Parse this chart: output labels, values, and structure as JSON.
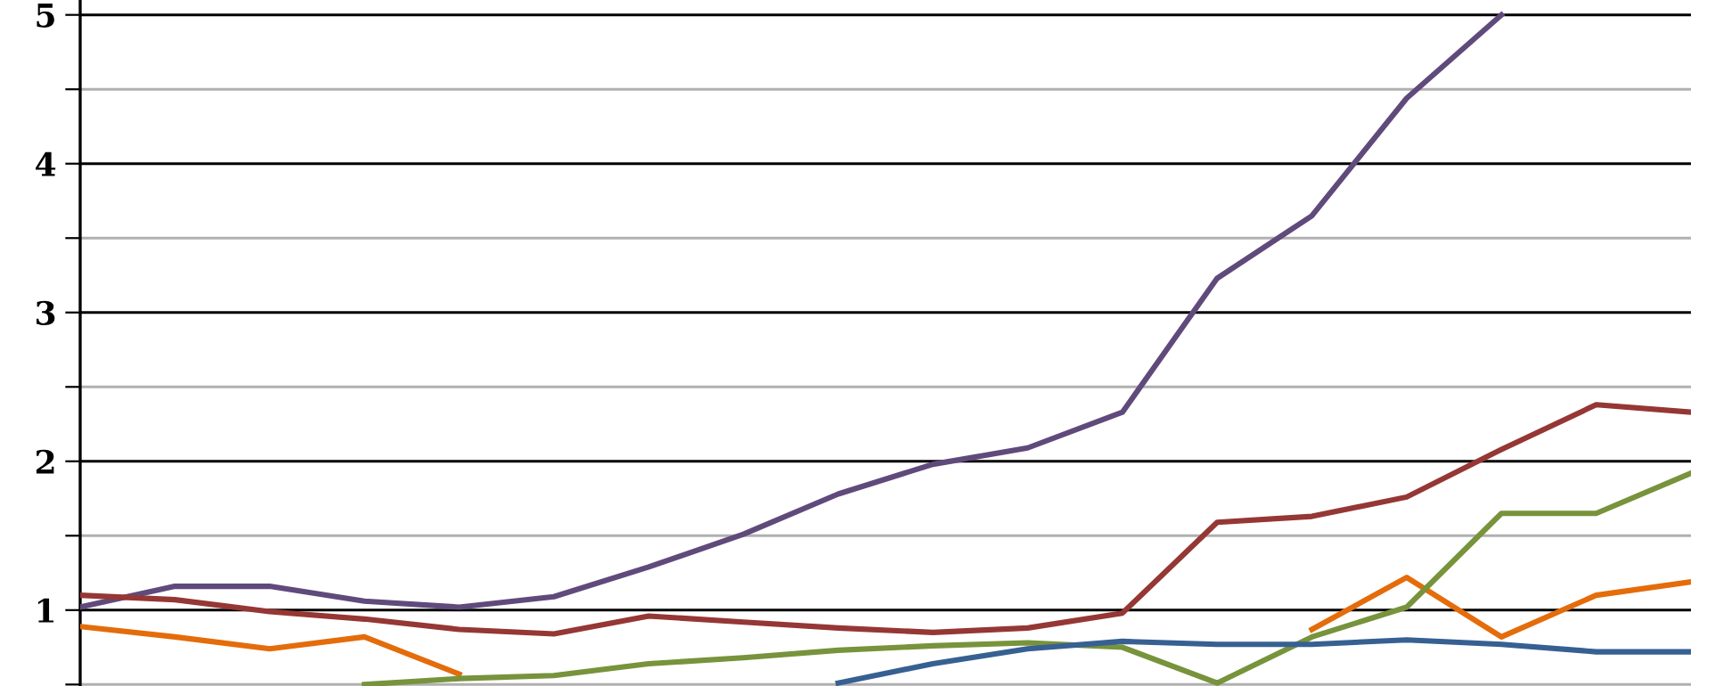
{
  "chart_data": {
    "type": "line",
    "categories": [
      null,
      null,
      null,
      null,
      null,
      null,
      null,
      null,
      null,
      null,
      null,
      null,
      null,
      null,
      null,
      null,
      null,
      null
    ],
    "series": [
      {
        "color": "#604a7b",
        "values": [
          1.02,
          1.16,
          1.16,
          1.06,
          1.02,
          1.09,
          1.29,
          1.51,
          1.78,
          1.98,
          2.09,
          2.33,
          3.23,
          3.65,
          4.44,
          5.0,
          null,
          null
        ]
      },
      {
        "color": "#953735",
        "values": [
          1.1,
          1.07,
          0.99,
          0.94,
          0.87,
          0.84,
          0.96,
          0.92,
          0.88,
          0.85,
          0.88,
          0.98,
          1.59,
          1.63,
          1.76,
          2.08,
          2.38,
          2.33
        ]
      },
      {
        "color": "#e46c0a",
        "values": [
          0.89,
          0.82,
          0.74,
          0.82,
          0.57,
          null,
          null,
          null,
          null,
          null,
          null,
          null,
          null,
          0.87,
          1.22,
          0.82,
          1.1,
          1.19
        ]
      },
      {
        "color": "#77933c",
        "values": [
          null,
          null,
          null,
          0.5,
          0.54,
          0.56,
          0.64,
          0.68,
          0.73,
          0.76,
          0.78,
          0.75,
          0.51,
          0.82,
          1.02,
          1.65,
          1.65,
          1.92
        ]
      },
      {
        "color": "#376092",
        "values": [
          null,
          null,
          null,
          null,
          null,
          null,
          null,
          null,
          0.51,
          0.64,
          0.74,
          0.79,
          0.77,
          0.77,
          0.8,
          0.77,
          0.72,
          0.72
        ]
      }
    ],
    "ylim": [
      0.49,
      5.1
    ],
    "yticks": [
      {
        "value": 0.5,
        "label": null
      },
      1,
      {
        "value": 1.5,
        "label": null
      },
      2,
      {
        "value": 2.5,
        "label": null
      },
      3,
      {
        "value": 3.5,
        "label": null
      },
      4,
      {
        "value": 4.5,
        "label": null
      },
      5
    ],
    "grid": "y",
    "tick_labels": "y",
    "marker": "none",
    "line_style": "solid",
    "legend": false
  }
}
